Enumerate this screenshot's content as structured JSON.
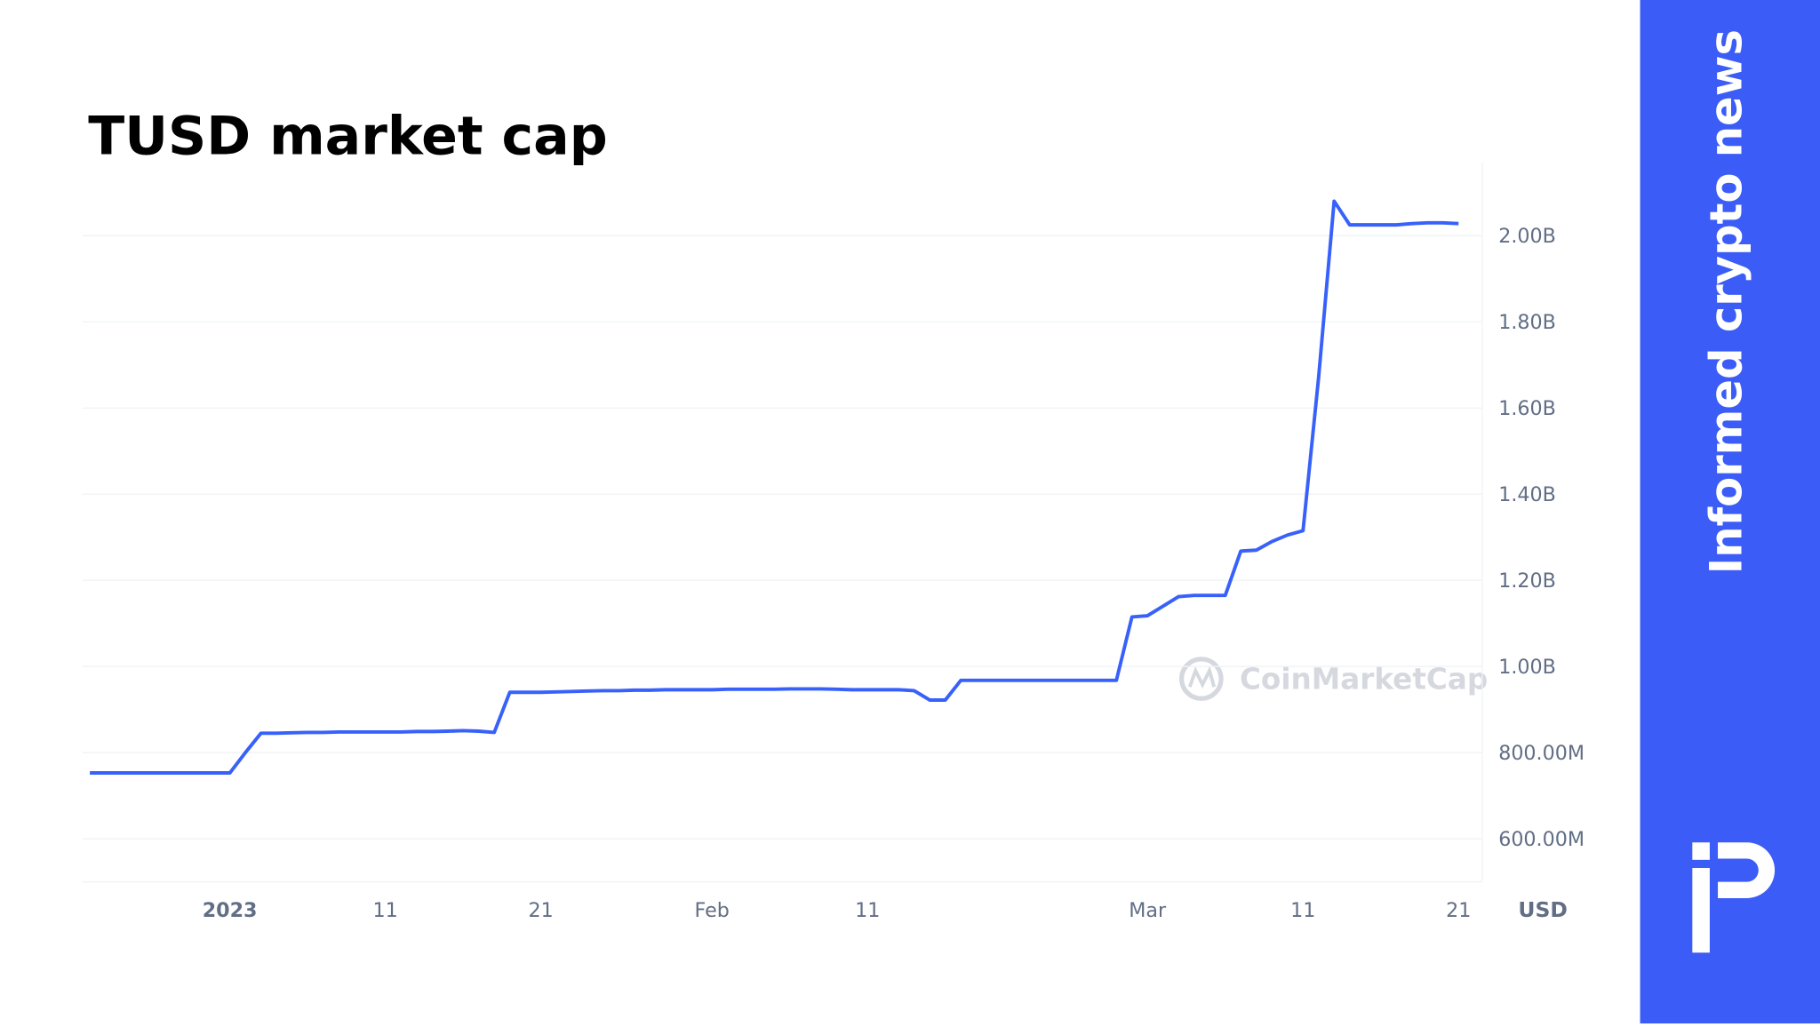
{
  "chart_data": {
    "type": "line",
    "title": "TUSD market cap",
    "categories": [
      null,
      null,
      null,
      null,
      null,
      null,
      null,
      null,
      null,
      "2023",
      null,
      null,
      null,
      null,
      null,
      null,
      null,
      null,
      null,
      "11",
      null,
      null,
      null,
      null,
      null,
      null,
      null,
      null,
      null,
      "21",
      null,
      null,
      null,
      null,
      null,
      null,
      null,
      null,
      null,
      null,
      "Feb",
      null,
      null,
      null,
      null,
      null,
      null,
      null,
      null,
      null,
      "11",
      null,
      null,
      null,
      null,
      null,
      null,
      null,
      null,
      null,
      null,
      null,
      null,
      null,
      null,
      null,
      null,
      null,
      "Mar",
      null,
      null,
      null,
      null,
      null,
      null,
      null,
      null,
      null,
      "11",
      null,
      null,
      null,
      null,
      null,
      null,
      null,
      null,
      null,
      "21"
    ],
    "series": [
      {
        "name": "TUSD market cap",
        "color": "#3861fb",
        "values": [
          753000000,
          753000000,
          753000000,
          753000000,
          753000000,
          753000000,
          753000000,
          753000000,
          753000000,
          753000000,
          800000000,
          845000000,
          845000000,
          846000000,
          847000000,
          847000000,
          848000000,
          848000000,
          848000000,
          848000000,
          848000000,
          849000000,
          849000000,
          850000000,
          851000000,
          850000000,
          847000000,
          940000000,
          940000000,
          940000000,
          941000000,
          942000000,
          943000000,
          944000000,
          944000000,
          945000000,
          945000000,
          946000000,
          946000000,
          946000000,
          946000000,
          947000000,
          947000000,
          947000000,
          947000000,
          948000000,
          948000000,
          948000000,
          947000000,
          946000000,
          946000000,
          946000000,
          946000000,
          944000000,
          922000000,
          922000000,
          968000000,
          968000000,
          968000000,
          968000000,
          968000000,
          968000000,
          968000000,
          968000000,
          968000000,
          968000000,
          968000000,
          1115000000,
          1118000000,
          1140000000,
          1162000000,
          1165000000,
          1165000000,
          1165000000,
          1268000000,
          1270000000,
          1290000000,
          1305000000,
          1315000000,
          1670000000,
          2080000000,
          2025000000,
          2025000000,
          2025000000,
          2025000000,
          2028000000,
          2030000000,
          2030000000,
          2028000000
        ]
      }
    ],
    "ylim": [
      500000000,
      2170000000
    ],
    "yticks": [
      {
        "value": 600000000,
        "label": "600.00M"
      },
      {
        "value": 800000000,
        "label": "800.00M"
      },
      {
        "value": 1000000000,
        "label": "1.00B"
      },
      {
        "value": 1200000000,
        "label": "1.20B"
      },
      {
        "value": 1400000000,
        "label": "1.40B"
      },
      {
        "value": 1600000000,
        "label": "1.60B"
      },
      {
        "value": 1800000000,
        "label": "1.80B"
      },
      {
        "value": 2000000000,
        "label": "2.00B"
      }
    ],
    "y_unit": "USD",
    "grid": true
  },
  "watermark": "CoinMarketCap",
  "sidebar": {
    "tagline": "Informed crypto news"
  }
}
